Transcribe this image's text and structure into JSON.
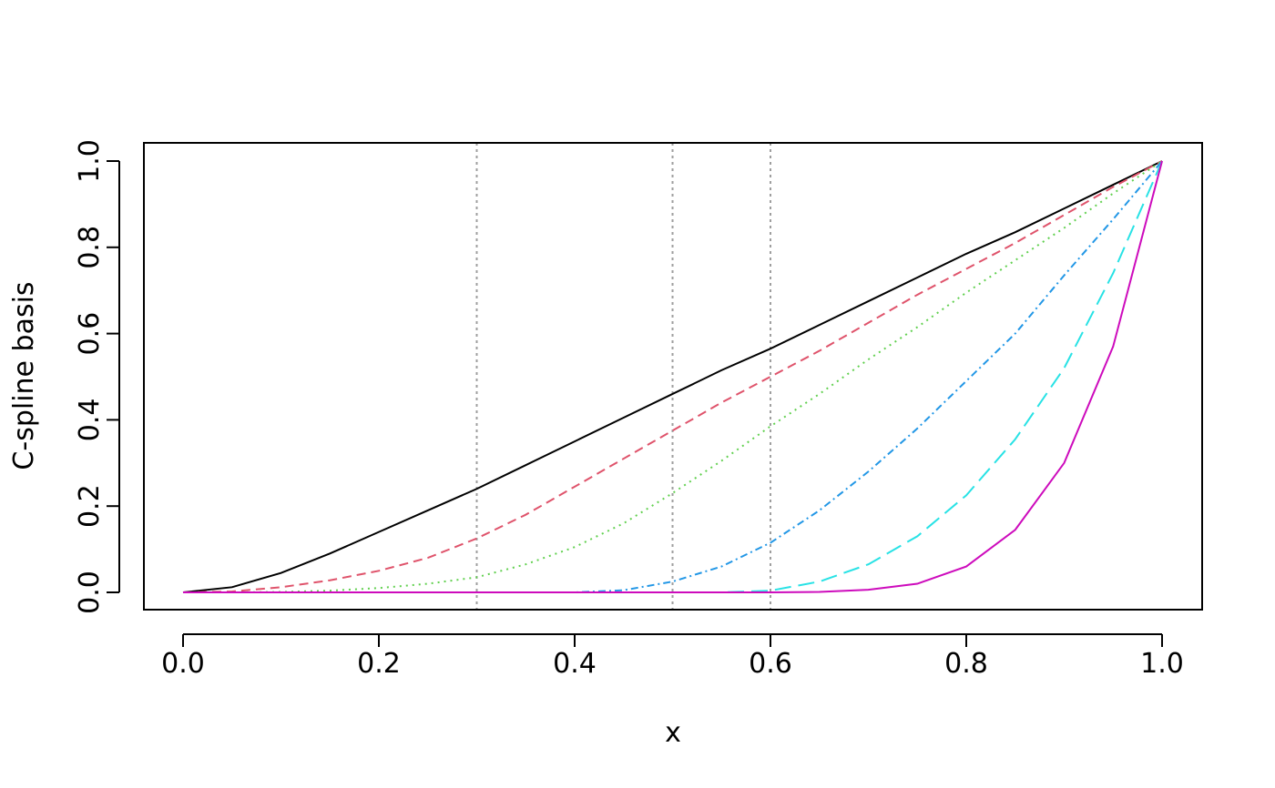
{
  "chart_data": {
    "type": "line",
    "title": "",
    "xlabel": "x",
    "ylabel": "C-spline basis",
    "xlim": [
      0.0,
      1.0
    ],
    "ylim": [
      0.0,
      1.0
    ],
    "x_ticks": [
      "0.0",
      "0.2",
      "0.4",
      "0.6",
      "0.8",
      "1.0"
    ],
    "y_ticks": [
      "0.0",
      "0.2",
      "0.4",
      "0.6",
      "0.8",
      "1.0"
    ],
    "grid": false,
    "legend": "none",
    "knots": [
      0.3,
      0.5,
      0.6
    ],
    "x": [
      0.0,
      0.05,
      0.1,
      0.15,
      0.2,
      0.25,
      0.3,
      0.35,
      0.4,
      0.45,
      0.5,
      0.55,
      0.6,
      0.65,
      0.7,
      0.75,
      0.8,
      0.85,
      0.9,
      0.95,
      1.0
    ],
    "series": [
      {
        "color": "#000000",
        "dash": "solid",
        "values": [
          0.0,
          0.012,
          0.045,
          0.09,
          0.14,
          0.19,
          0.24,
          0.295,
          0.35,
          0.405,
          0.46,
          0.515,
          0.565,
          0.62,
          0.675,
          0.73,
          0.785,
          0.835,
          0.89,
          0.945,
          1.0
        ]
      },
      {
        "color": "#DF536B",
        "dash": "dashed",
        "values": [
          0.0,
          0.002,
          0.012,
          0.028,
          0.05,
          0.08,
          0.125,
          0.18,
          0.245,
          0.31,
          0.375,
          0.44,
          0.5,
          0.56,
          0.625,
          0.69,
          0.75,
          0.81,
          0.875,
          0.94,
          1.0
        ]
      },
      {
        "color": "#61D04F",
        "dash": "dotted",
        "values": [
          0.0,
          0.0,
          0.001,
          0.004,
          0.01,
          0.02,
          0.035,
          0.065,
          0.105,
          0.16,
          0.23,
          0.305,
          0.385,
          0.46,
          0.54,
          0.615,
          0.695,
          0.77,
          0.845,
          0.925,
          1.0
        ]
      },
      {
        "color": "#2297E6",
        "dash": "dotdash",
        "values": [
          0.0,
          0.0,
          0.0,
          0.0,
          0.0,
          0.0,
          0.0,
          0.0,
          0.0,
          0.005,
          0.025,
          0.06,
          0.115,
          0.19,
          0.28,
          0.38,
          0.49,
          0.6,
          0.735,
          0.865,
          1.0
        ]
      },
      {
        "color": "#28E2E5",
        "dash": "longdash",
        "values": [
          0.0,
          0.0,
          0.0,
          0.0,
          0.0,
          0.0,
          0.0,
          0.0,
          0.0,
          0.0,
          0.0,
          0.0,
          0.004,
          0.025,
          0.065,
          0.13,
          0.225,
          0.355,
          0.52,
          0.74,
          1.0
        ]
      },
      {
        "color": "#CD0BBC",
        "dash": "solid",
        "values": [
          0.0,
          0.0,
          0.0,
          0.0,
          0.0,
          0.0,
          0.0,
          0.0,
          0.0,
          0.0,
          0.0,
          0.0,
          0.0,
          0.001,
          0.006,
          0.02,
          0.06,
          0.145,
          0.3,
          0.57,
          1.0
        ]
      }
    ]
  }
}
